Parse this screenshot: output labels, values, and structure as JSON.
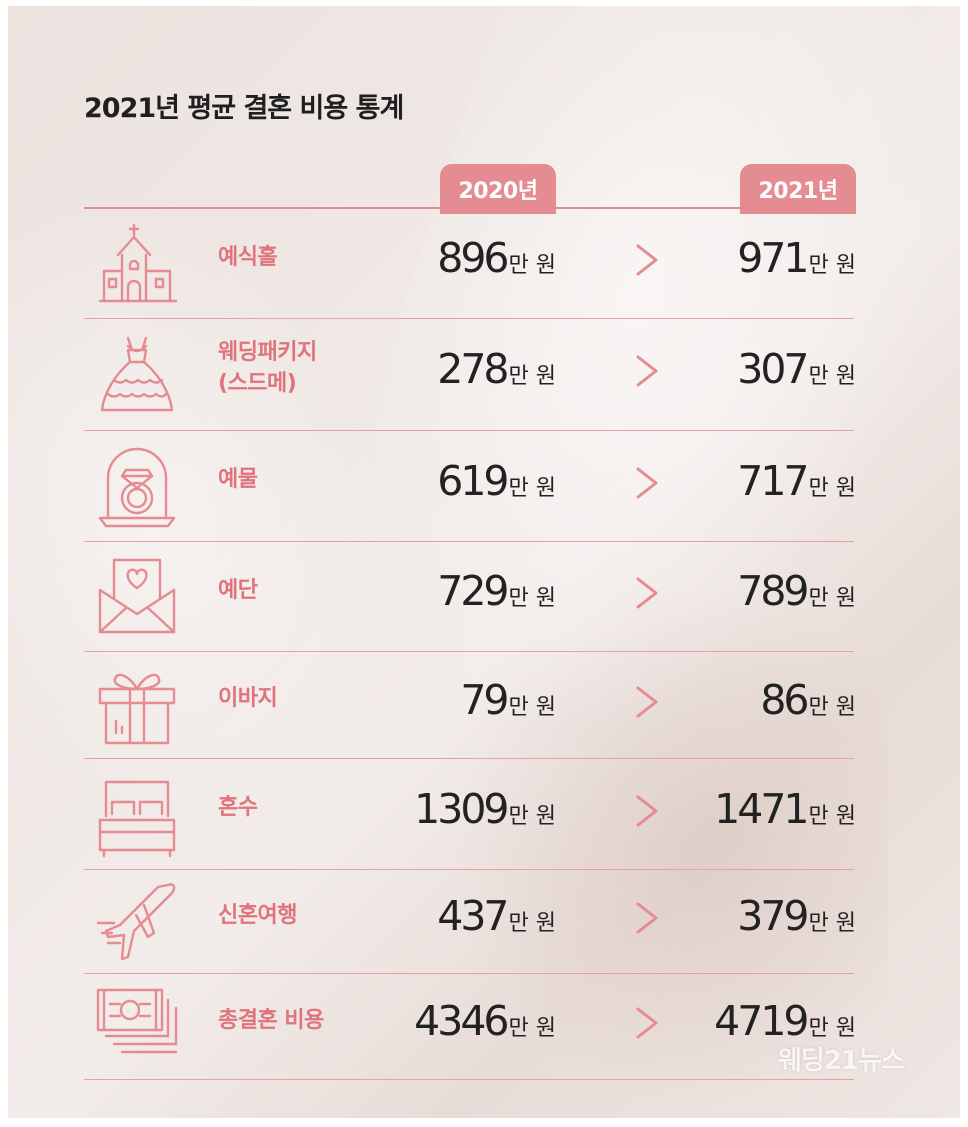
{
  "title": "2021년 평균 결혼 비용 통계",
  "watermark": "웨딩21뉴스",
  "colors": {
    "accent": "#e58b92",
    "label": "#e0737d"
  },
  "chart_data": {
    "type": "table",
    "title": "2021년 평균 결혼 비용 통계",
    "columns": [
      "2020년",
      "2021년"
    ],
    "unit": "만 원",
    "rows": [
      {
        "label": "예식홀",
        "label_lines": [
          "예식홀"
        ],
        "icon": "church-icon",
        "v2020": "896",
        "v2021": "971"
      },
      {
        "label": "웨딩패키지 (스드메)",
        "label_lines": [
          "웨딩패키지",
          "(스드메)"
        ],
        "icon": "wedding-dress-icon",
        "v2020": "278",
        "v2021": "307"
      },
      {
        "label": "예물",
        "label_lines": [
          "예물"
        ],
        "icon": "ring-icon",
        "v2020": "619",
        "v2021": "717"
      },
      {
        "label": "예단",
        "label_lines": [
          "예단"
        ],
        "icon": "envelope-heart-icon",
        "v2020": "729",
        "v2021": "789"
      },
      {
        "label": "이바지",
        "label_lines": [
          "이바지"
        ],
        "icon": "gift-box-icon",
        "v2020": "79",
        "v2021": "86"
      },
      {
        "label": "혼수",
        "label_lines": [
          "혼수"
        ],
        "icon": "bed-icon",
        "v2020": "1309",
        "v2021": "1471"
      },
      {
        "label": "신혼여행",
        "label_lines": [
          "신혼여행"
        ],
        "icon": "airplane-icon",
        "v2020": "437",
        "v2021": "379"
      },
      {
        "label": "총결혼 비용",
        "label_lines": [
          "총결혼 비용"
        ],
        "icon": "money-stack-icon",
        "v2020": "4346",
        "v2021": "4719"
      }
    ]
  }
}
